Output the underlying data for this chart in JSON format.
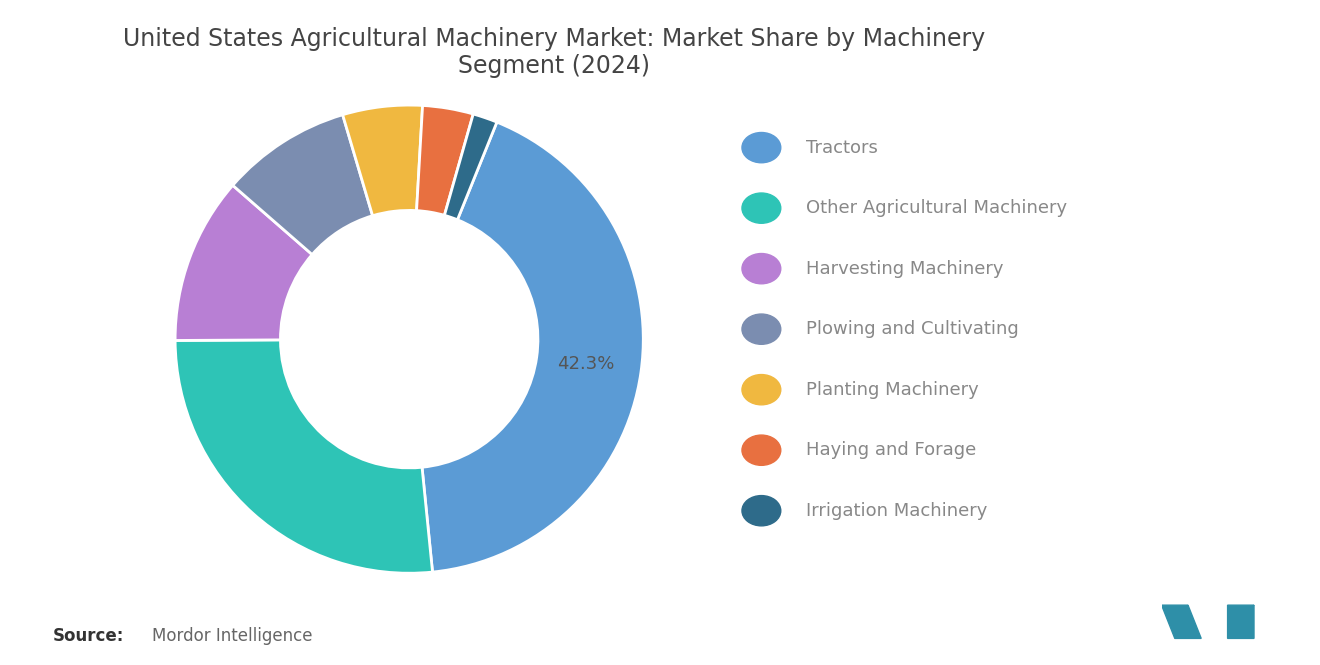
{
  "title": "United States Agricultural Machinery Market: Market Share by Machinery\nSegment (2024)",
  "segments": [
    {
      "label": "Tractors",
      "value": 42.3,
      "color": "#5B9BD5"
    },
    {
      "label": "Other Agricultural Machinery",
      "value": 26.5,
      "color": "#2EC4B6"
    },
    {
      "label": "Harvesting Machinery",
      "value": 11.5,
      "color": "#B87FD4"
    },
    {
      "label": "Plowing and Cultivating",
      "value": 9.0,
      "color": "#7B8DB0"
    },
    {
      "label": "Planting Machinery",
      "value": 5.5,
      "color": "#F0B840"
    },
    {
      "label": "Haying and Forage",
      "value": 3.5,
      "color": "#E87040"
    },
    {
      "label": "Irrigation Machinery",
      "value": 1.7,
      "color": "#2E6B8A"
    }
  ],
  "label_42": "42.3%",
  "source_bold": "Source:",
  "source_text": "Mordor Intelligence",
  "background_color": "#FFFFFF",
  "title_fontsize": 17,
  "legend_fontsize": 13,
  "source_fontsize": 12,
  "donut_width": 0.45,
  "start_angle": 68,
  "label_r": 0.76
}
